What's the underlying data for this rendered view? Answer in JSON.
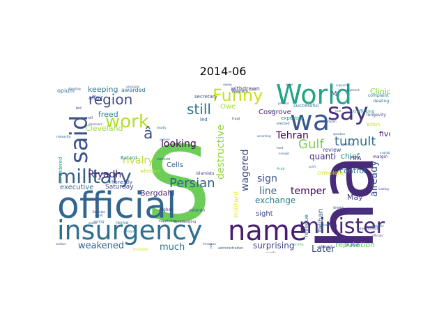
{
  "chart_data": {
    "type": "wordcloud",
    "title": "2014-06",
    "colormap": "viridis",
    "background": "#ffffff",
    "words": [
      {
        "text": "ha",
        "size": 100,
        "color": "#472b7a",
        "rotate": true
      },
      {
        "text": "S",
        "size": 95,
        "color": "#6cce59",
        "rotate": false
      },
      {
        "text": "official",
        "size": 50,
        "color": "#31678e",
        "rotate": false
      },
      {
        "text": "insurgency",
        "size": 40,
        "color": "#2d708e",
        "rotate": false
      },
      {
        "text": "name",
        "size": 40,
        "color": "#481d6f",
        "rotate": false
      },
      {
        "text": "World",
        "size": 36,
        "color": "#20a386",
        "rotate": false
      },
      {
        "text": "wa",
        "size": 36,
        "color": "#38588c",
        "rotate": false
      },
      {
        "text": "say",
        "size": 34,
        "color": "#46307e",
        "rotate": false
      },
      {
        "text": "said",
        "size": 34,
        "color": "#3b528b",
        "rotate": true
      },
      {
        "text": "minister",
        "size": 30,
        "color": "#482576",
        "rotate": false
      },
      {
        "text": "military",
        "size": 28,
        "color": "#355e8d",
        "rotate": false
      },
      {
        "text": "work",
        "size": 26,
        "color": "#b5de2b",
        "rotate": false
      },
      {
        "text": "Funny",
        "size": 24,
        "color": "#c8e020",
        "rotate": false
      },
      {
        "text": "region",
        "size": 20,
        "color": "#3e4c8a",
        "rotate": false
      },
      {
        "text": "still",
        "size": 20,
        "color": "#2c738e",
        "rotate": false
      },
      {
        "text": "tumult",
        "size": 18,
        "color": "#2e6f8e",
        "rotate": false
      },
      {
        "text": "Gulf",
        "size": 18,
        "color": "#7ad151",
        "rotate": false
      },
      {
        "text": "Persian",
        "size": 18,
        "color": "#34608d",
        "rotate": false
      },
      {
        "text": "â",
        "size": 20,
        "color": "#3d4e8a",
        "rotate": false
      },
      {
        "text": "looking",
        "size": 14,
        "color": "#440154",
        "rotate": false
      },
      {
        "text": "destructive",
        "size": 14,
        "color": "#93d741",
        "rotate": true
      },
      {
        "text": "Tehran",
        "size": 14,
        "color": "#440154",
        "rotate": false
      },
      {
        "text": "quanti",
        "size": 12,
        "color": "#472d7b",
        "rotate": false
      },
      {
        "text": "temper",
        "size": 14,
        "color": "#440154",
        "rotate": false
      },
      {
        "text": "line",
        "size": 14,
        "color": "#33638d",
        "rotate": false
      },
      {
        "text": "sign",
        "size": 14,
        "color": "#3b528b",
        "rotate": false
      },
      {
        "text": "exchange",
        "size": 12,
        "color": "#26828e",
        "rotate": false
      },
      {
        "text": "already",
        "size": 14,
        "color": "#3b528b",
        "rotate": true
      },
      {
        "text": "rivalry",
        "size": 14,
        "color": "#bddf26",
        "rotate": false
      },
      {
        "text": "Riyadh",
        "size": 14,
        "color": "#482475",
        "rotate": false
      },
      {
        "text": "wagered",
        "size": 14,
        "color": "#3e4989",
        "rotate": true
      },
      {
        "text": "militant",
        "size": 10,
        "color": "#f1e51d",
        "rotate": true
      },
      {
        "text": "surprising",
        "size": 12,
        "color": "#3f4788",
        "rotate": false
      },
      {
        "text": "weakened",
        "size": 13,
        "color": "#33638d",
        "rotate": false
      },
      {
        "text": "much",
        "size": 13,
        "color": "#2d708e",
        "rotate": false
      },
      {
        "text": "Later",
        "size": 13,
        "color": "#3d4e8a",
        "rotate": false
      },
      {
        "text": "reputation",
        "size": 11,
        "color": "#6ece58",
        "rotate": false
      },
      {
        "text": "Taliban",
        "size": 10,
        "color": "#31688e",
        "rotate": true
      },
      {
        "text": "control",
        "size": 11,
        "color": "#287c8e",
        "rotate": false
      },
      {
        "text": "chief",
        "size": 11,
        "color": "#1f978b",
        "rotate": false
      },
      {
        "text": "Clinic",
        "size": 11,
        "color": "#7fd34e",
        "rotate": false
      },
      {
        "text": "five",
        "size": 11,
        "color": "#481f70",
        "rotate": false
      },
      {
        "text": "May",
        "size": 11,
        "color": "#433e85",
        "rotate": false
      },
      {
        "text": "sight",
        "size": 10,
        "color": "#3e4989",
        "rotate": false
      },
      {
        "text": "Bergdahl",
        "size": 11,
        "color": "#482878",
        "rotate": false
      },
      {
        "text": "executive",
        "size": 10,
        "color": "#31688e",
        "rotate": false
      },
      {
        "text": "Saturday",
        "size": 9,
        "color": "#404688",
        "rotate": false
      },
      {
        "text": "Cells",
        "size": 10,
        "color": "#355f8d",
        "rotate": false
      },
      {
        "text": "freed",
        "size": 11,
        "color": "#25858e",
        "rotate": false
      },
      {
        "text": "Cleveland",
        "size": 11,
        "color": "#9fda3a",
        "rotate": false
      },
      {
        "text": "Cosgrove",
        "size": 10,
        "color": "#482173",
        "rotate": false
      },
      {
        "text": "keeping",
        "size": 11,
        "color": "#2a788e",
        "rotate": false
      },
      {
        "text": "Owe",
        "size": 10,
        "color": "#a5db36",
        "rotate": false
      },
      {
        "text": "M",
        "size": 10,
        "color": "#3b528b",
        "rotate": false
      },
      {
        "text": "FIFA",
        "size": 8,
        "color": "#481a6c",
        "rotate": false
      },
      {
        "text": "review",
        "size": 8,
        "color": "#3f4788",
        "rotate": false
      },
      {
        "text": "complete",
        "size": 8,
        "color": "#d8e219",
        "rotate": false
      },
      {
        "text": "revenue",
        "size": 8,
        "color": "#2c728e",
        "rotate": true
      },
      {
        "text": "persuade",
        "size": 7,
        "color": "#414487",
        "rotate": false
      },
      {
        "text": "awarded",
        "size": 8,
        "color": "#2a788e",
        "rotate": false
      },
      {
        "text": "affair",
        "size": 8,
        "color": "#3b528b",
        "rotate": false
      },
      {
        "text": "opium",
        "size": 8,
        "color": "#2d708e",
        "rotate": false
      },
      {
        "text": "considered",
        "size": 7,
        "color": "#1fa088",
        "rotate": true
      },
      {
        "text": "honestly",
        "size": 7,
        "color": "#3e4c8a",
        "rotate": false
      },
      {
        "text": "Batard",
        "size": 7,
        "color": "#25858e",
        "rotate": false
      },
      {
        "text": "whether",
        "size": 7,
        "color": "#c2df23",
        "rotate": false
      },
      {
        "text": "secretary",
        "size": 7,
        "color": "#3e4c8a",
        "rotate": false
      },
      {
        "text": "withdrawn",
        "size": 8,
        "color": "#453781",
        "rotate": false
      },
      {
        "text": "successful",
        "size": 7,
        "color": "#2d718e",
        "rotate": false
      },
      {
        "text": "Western",
        "size": 6,
        "color": "#3b528b",
        "rotate": false
      },
      {
        "text": "expected",
        "size": 7,
        "color": "#1f9e89",
        "rotate": false
      },
      {
        "text": "adversary",
        "size": 6,
        "color": "#472c7a",
        "rotate": false
      },
      {
        "text": "dealing",
        "size": 6,
        "color": "#2d718e",
        "rotate": false
      },
      {
        "text": "complaint",
        "size": 6,
        "color": "#2a778e",
        "rotate": false
      },
      {
        "text": "longevity",
        "size": 6,
        "color": "#3e4a89",
        "rotate": false
      },
      {
        "text": "trafficking",
        "size": 6,
        "color": "#1f988b",
        "rotate": false
      },
      {
        "text": "British",
        "size": 6,
        "color": "#b8de29",
        "rotate": false
      },
      {
        "text": "margin",
        "size": 6,
        "color": "#482071",
        "rotate": false
      },
      {
        "text": "government",
        "size": 5,
        "color": "#3f4889",
        "rotate": false
      },
      {
        "text": "United",
        "size": 6,
        "color": "#2a768e",
        "rotate": false
      },
      {
        "text": "shoved",
        "size": 5,
        "color": "#3d4d8a",
        "rotate": false
      },
      {
        "text": "prime",
        "size": 5,
        "color": "#4ac16d",
        "rotate": false
      },
      {
        "text": "words",
        "size": 5,
        "color": "#33628d",
        "rotate": false
      },
      {
        "text": "administration",
        "size": 5,
        "color": "#3c508b",
        "rotate": false
      },
      {
        "text": "Afghan",
        "size": 6,
        "color": "#443983",
        "rotate": false
      },
      {
        "text": "veteran",
        "size": 6,
        "color": "#3b528b",
        "rotate": false
      },
      {
        "text": "revive",
        "size": 6,
        "color": "#2d708e",
        "rotate": false
      },
      {
        "text": "Islamists",
        "size": 6,
        "color": "#3f4788",
        "rotate": false
      },
      {
        "text": "Rising",
        "size": 6,
        "color": "#3a548c",
        "rotate": false
      },
      {
        "text": "minority",
        "size": 5,
        "color": "#31678e",
        "rotate": false
      },
      {
        "text": "venture",
        "size": 5,
        "color": "#39568c",
        "rotate": false
      },
      {
        "text": "led",
        "size": 7,
        "color": "#33638d",
        "rotate": false
      },
      {
        "text": "elected",
        "size": 5,
        "color": "#2f6c8e",
        "rotate": false
      },
      {
        "text": "Iraqi",
        "size": 5,
        "color": "#3b528b",
        "rotate": false
      },
      {
        "text": "spring",
        "size": 5,
        "color": "#297a8e",
        "rotate": false
      },
      {
        "text": "increase",
        "size": 5,
        "color": "#d2e21b",
        "rotate": false
      },
      {
        "text": "supplying",
        "size": 5,
        "color": "#3b528b",
        "rotate": false
      },
      {
        "text": "synthesizing",
        "size": 5,
        "color": "#472d7b",
        "rotate": false
      },
      {
        "text": "dream",
        "size": 5,
        "color": "#3b528b",
        "rotate": false
      },
      {
        "text": "Arab",
        "size": 5,
        "color": "#35b779",
        "rotate": false
      },
      {
        "text": "hospital",
        "size": 4,
        "color": "#2c728e",
        "rotate": false
      },
      {
        "text": "deadly",
        "size": 4,
        "color": "#2e6e8e",
        "rotate": false
      },
      {
        "text": "system",
        "size": 4,
        "color": "#2f6b8e",
        "rotate": false
      },
      {
        "text": "mill",
        "size": 5,
        "color": "#3d4e8a",
        "rotate": false
      },
      {
        "text": "doubt",
        "size": 4,
        "color": "#3b528b",
        "rotate": false
      },
      {
        "text": "Baghdad",
        "size": 4,
        "color": "#414487",
        "rotate": false
      },
      {
        "text": "bid",
        "size": 5,
        "color": "#3e4a89",
        "rotate": false
      },
      {
        "text": "available",
        "size": 4,
        "color": "#2d708e",
        "rotate": false
      },
      {
        "text": "according",
        "size": 4,
        "color": "#3b528b",
        "rotate": false
      },
      {
        "text": "directing",
        "size": 4,
        "color": "#3e4c8a",
        "rotate": false
      },
      {
        "text": "next",
        "size": 4,
        "color": "#31688e",
        "rotate": false
      },
      {
        "text": "sweep",
        "size": 4,
        "color": "#3b528b",
        "rotate": false
      },
      {
        "text": "surface",
        "size": 4,
        "color": "#3f4788",
        "rotate": false
      },
      {
        "text": "ally",
        "size": 4,
        "color": "#26828e",
        "rotate": false
      },
      {
        "text": "operate",
        "size": 4,
        "color": "#2d708e",
        "rotate": false
      },
      {
        "text": "observers",
        "size": 4,
        "color": "#3e4c8a",
        "rotate": false
      },
      {
        "text": "champion",
        "size": 4,
        "color": "#3b528b",
        "rotate": false
      },
      {
        "text": "American",
        "size": 4,
        "color": "#33638d",
        "rotate": false
      },
      {
        "text": "supporter",
        "size": 4,
        "color": "#2d718e",
        "rotate": false
      },
      {
        "text": "question",
        "size": 4,
        "color": "#3b528b",
        "rotate": false
      },
      {
        "text": "prevent",
        "size": 4,
        "color": "#39568c",
        "rotate": false
      },
      {
        "text": "enter",
        "size": 4,
        "color": "#3e4c8a",
        "rotate": false
      },
      {
        "text": "sanctions",
        "size": 4,
        "color": "#3b528b",
        "rotate": false
      },
      {
        "text": "equipment",
        "size": 4,
        "color": "#3e4c8a",
        "rotate": false
      },
      {
        "text": "job",
        "size": 5,
        "color": "#2d708e",
        "rotate": true
      },
      {
        "text": "asked",
        "size": 4,
        "color": "#3b528b",
        "rotate": false
      },
      {
        "text": "embassy",
        "size": 4,
        "color": "#2c728e",
        "rotate": false
      },
      {
        "text": "officials",
        "size": 4,
        "color": "#3b528b",
        "rotate": false
      },
      {
        "text": "hard",
        "size": 4,
        "color": "#3f4788",
        "rotate": false
      },
      {
        "text": "enough",
        "size": 4,
        "color": "#31688e",
        "rotate": false
      },
      {
        "text": "dealings",
        "size": 4,
        "color": "#3b528b",
        "rotate": false
      },
      {
        "text": "leading",
        "size": 4,
        "color": "#3e4c8a",
        "rotate": false
      },
      {
        "text": "spirit",
        "size": 4,
        "color": "#2d708e",
        "rotate": false
      }
    ]
  }
}
